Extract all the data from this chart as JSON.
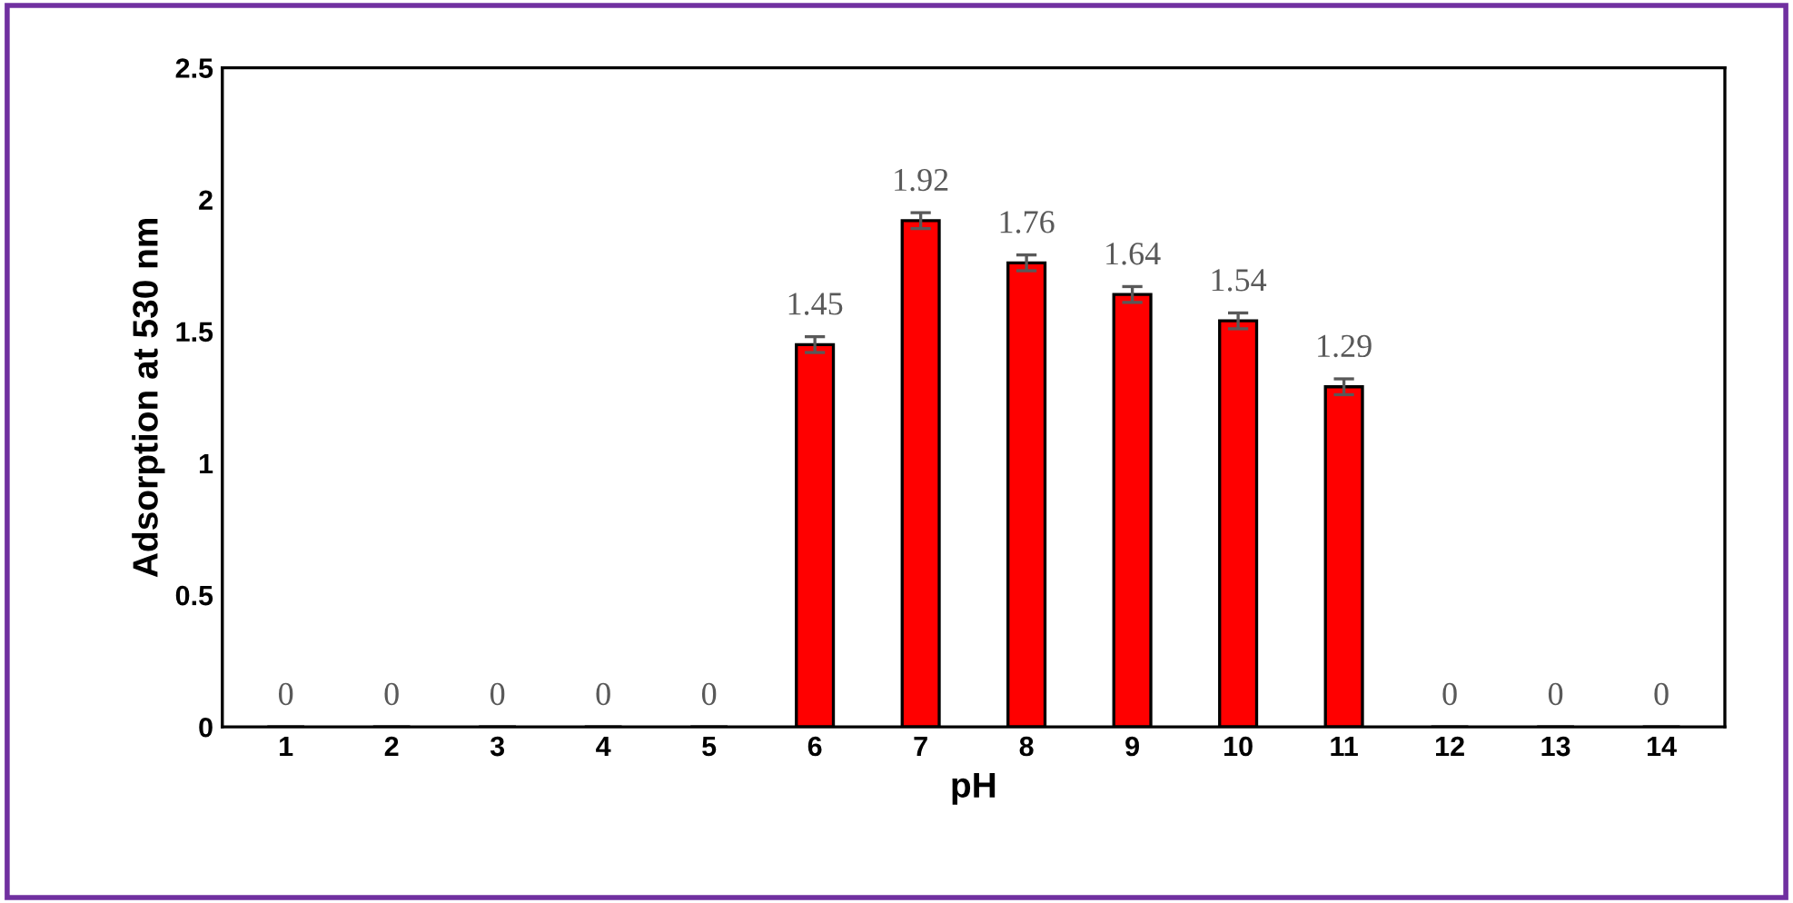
{
  "chart_data": {
    "type": "bar",
    "xlabel": "pH",
    "ylabel": "Adsorption at 530 nm",
    "categories": [
      "1",
      "2",
      "3",
      "4",
      "5",
      "6",
      "7",
      "8",
      "9",
      "10",
      "11",
      "12",
      "13",
      "14"
    ],
    "values": [
      0,
      0,
      0,
      0,
      0,
      1.45,
      1.92,
      1.76,
      1.64,
      1.54,
      1.29,
      0,
      0,
      0
    ],
    "errors": [
      null,
      null,
      null,
      null,
      null,
      0.03,
      0.03,
      0.03,
      0.03,
      0.03,
      0.03,
      null,
      null,
      null
    ],
    "color": "#ff0000",
    "data_labels": true,
    "grid": false,
    "ylim": [
      0,
      2.5
    ],
    "yticks": [
      0,
      0.5,
      1,
      1.5,
      2,
      2.5
    ]
  }
}
